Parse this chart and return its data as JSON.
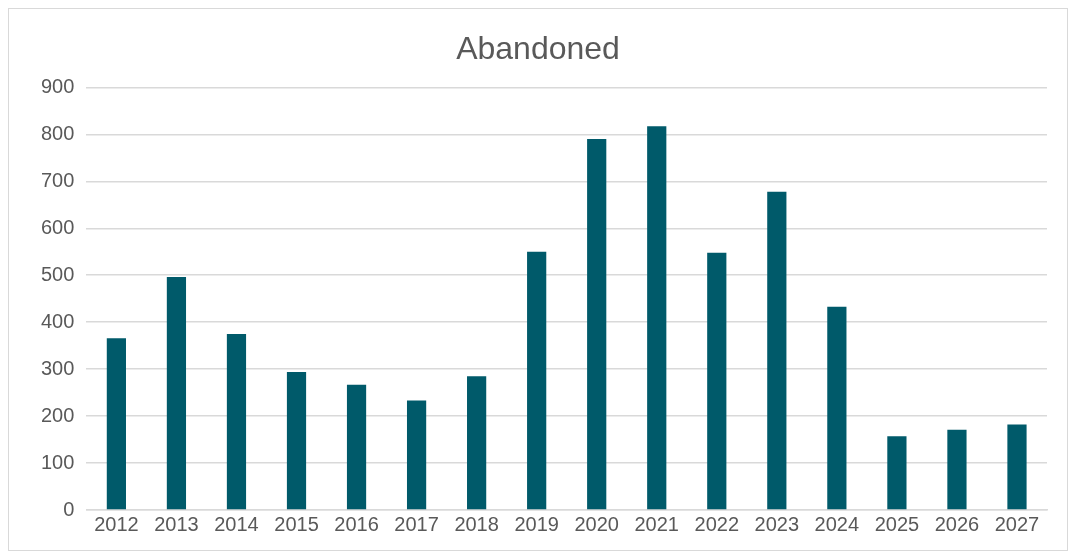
{
  "chart_data": {
    "type": "bar",
    "title": "Abandoned",
    "categories": [
      "2012",
      "2013",
      "2014",
      "2015",
      "2016",
      "2017",
      "2018",
      "2019",
      "2020",
      "2021",
      "2022",
      "2023",
      "2024",
      "2025",
      "2026",
      "2027"
    ],
    "values": [
      366,
      496,
      375,
      294,
      267,
      233,
      285,
      550,
      790,
      817,
      548,
      678,
      433,
      157,
      171,
      182
    ],
    "color": "#005a6a",
    "ylim": [
      0,
      900
    ],
    "yticks": [
      0,
      100,
      200,
      300,
      400,
      500,
      600,
      700,
      800,
      900
    ],
    "grid": "y",
    "legend": false
  }
}
